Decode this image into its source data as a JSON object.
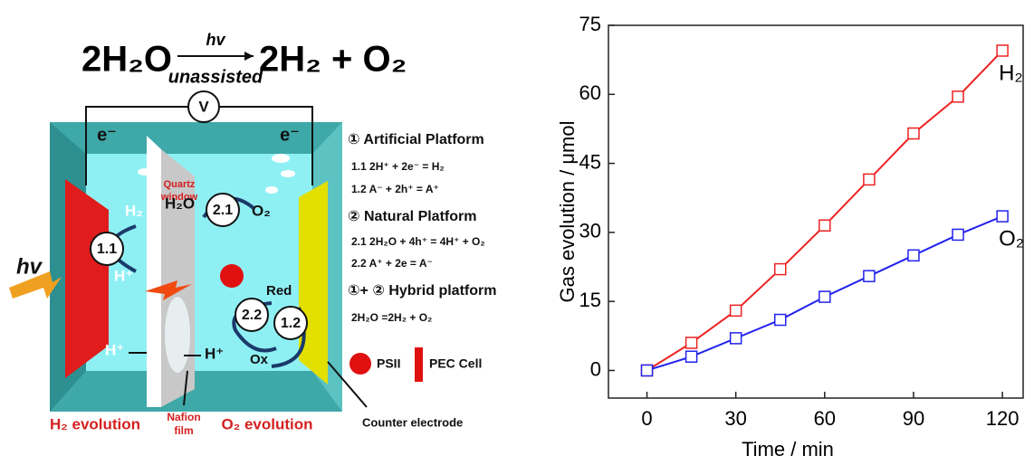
{
  "diagram": {
    "equation": {
      "left": "2H₂O",
      "arrow_top": "hv",
      "arrow_bottom": "unassisted",
      "right": "2H₂ + O₂"
    },
    "voltmeter": "V",
    "electrons": [
      "e⁻",
      "e⁻"
    ],
    "quartz_window": [
      "Quartz",
      "window"
    ],
    "hv": "hv",
    "cell_labels": {
      "h2": "H₂",
      "h_plus_1": "H⁺",
      "h_plus_2": "H⁺",
      "h2o": "H₂O",
      "o2": "O₂",
      "red": "Red",
      "ox": "Ox",
      "h_plus_3": "H⁺"
    },
    "circles": [
      "1.1",
      "2.1",
      "2.2",
      "1.2"
    ],
    "bottom_labels": {
      "h2_evolution": "H₂ evolution",
      "nafion": [
        "Nafion",
        "film"
      ],
      "o2_evolution": "O₂ evolution",
      "counter": "Counter electrode"
    },
    "platforms": [
      "① Artificial Platform",
      "1.1  2H⁺ + 2e⁻ = H₂",
      "1.2  A⁻ + 2h⁺ = A⁺",
      "② Natural Platform",
      "2.1  2H₂O + 4h⁺ = 4H⁺ + O₂",
      "2.2  A⁺ + 2e = A⁻",
      "①+ ② Hybrid platform",
      "2H₂O =2H₂ + O₂"
    ],
    "legend": [
      "PSII",
      "PEC Cell"
    ]
  },
  "chart_data": {
    "type": "line",
    "x_label": "Time / min",
    "y_label": "Gas evolution / μmol",
    "x": [
      0,
      15,
      30,
      45,
      60,
      75,
      90,
      105,
      120
    ],
    "series": [
      {
        "name": "H₂",
        "color": "#ee2222",
        "values": [
          0,
          6,
          13,
          22,
          31.5,
          41.5,
          51.5,
          59.5,
          69.5
        ]
      },
      {
        "name": "O₂",
        "color": "#2222ee",
        "values": [
          0,
          3,
          7,
          11,
          16,
          20.5,
          25,
          29.5,
          33.5
        ]
      }
    ],
    "xlim": [
      -13,
      127
    ],
    "ylim": [
      -6,
      75
    ],
    "xticks": [
      0,
      30,
      60,
      90,
      120
    ],
    "yticks": [
      0,
      15,
      30,
      45,
      60,
      75
    ]
  }
}
